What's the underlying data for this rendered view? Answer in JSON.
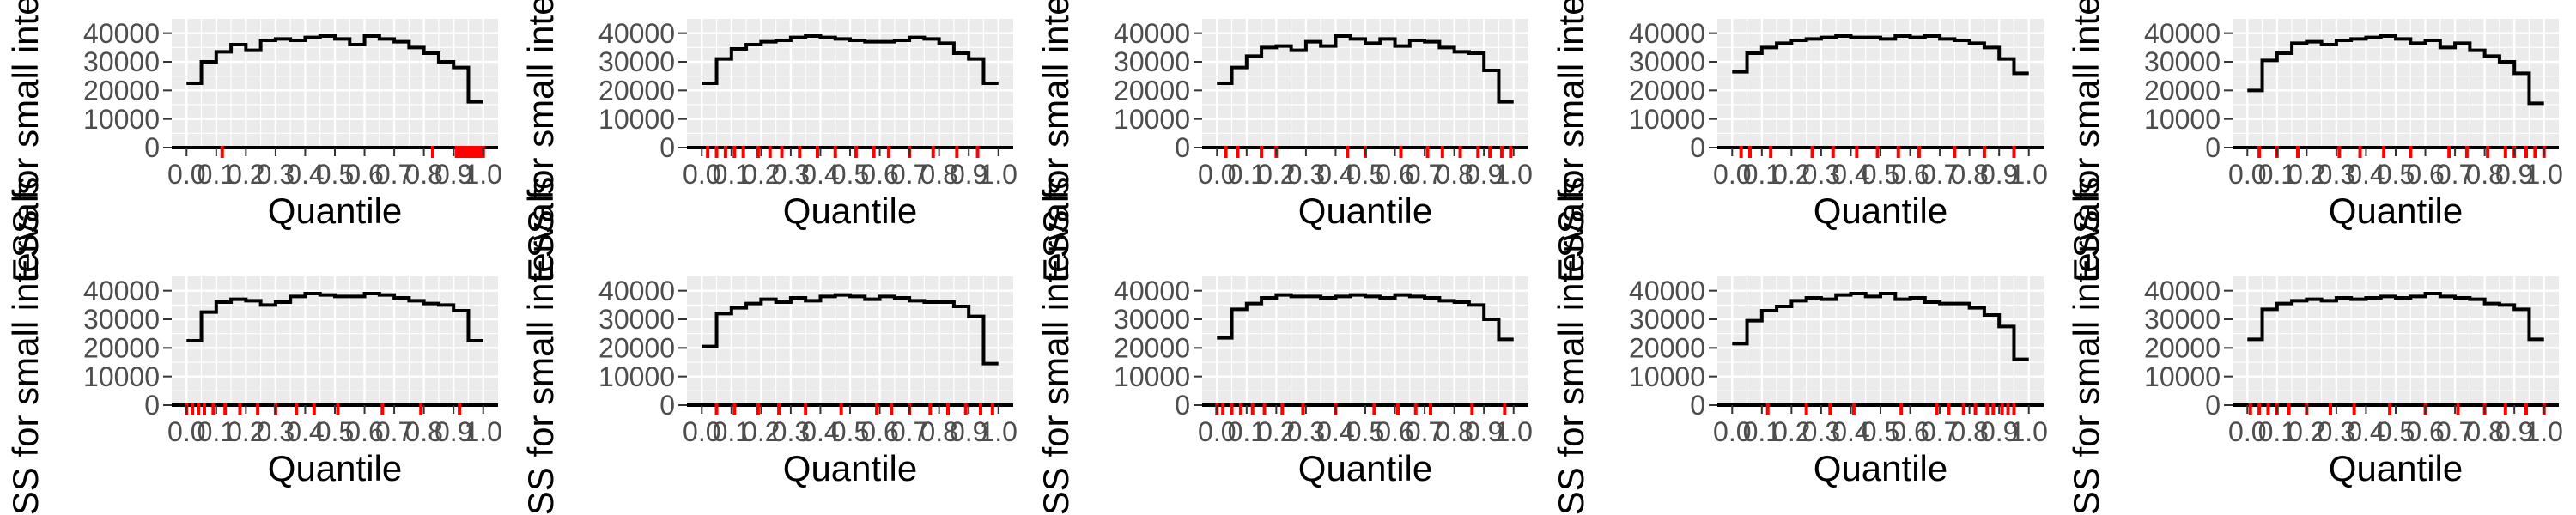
{
  "figure": {
    "background": "#ffffff",
    "panel_background": "#ebebeb",
    "grid_color": "#ffffff",
    "line_color": "#000000",
    "rug_color": "#ff0000",
    "tick_text_color": "#4d4d4d"
  },
  "chart_data": [
    {
      "type": "line",
      "step": true,
      "xlabel": "Quantile",
      "ylabel": "ESS for small intervals",
      "ylim": [
        0,
        45000
      ],
      "yticks": [
        0,
        10000,
        20000,
        30000,
        40000
      ],
      "xlim": [
        -0.05,
        1.05
      ],
      "xticks": [
        "0.0",
        "0.1",
        "0.2",
        "0.3",
        "0.4",
        "0.5",
        "0.6",
        "0.7",
        "0.8",
        "0.9",
        "1.0"
      ],
      "grid": true,
      "x": [
        0.0,
        0.05,
        0.1,
        0.15,
        0.2,
        0.25,
        0.3,
        0.35,
        0.4,
        0.45,
        0.5,
        0.55,
        0.6,
        0.65,
        0.7,
        0.75,
        0.8,
        0.85,
        0.9,
        0.95
      ],
      "values": [
        22500,
        30000,
        33500,
        36000,
        34000,
        37500,
        38000,
        37500,
        38500,
        39000,
        38000,
        36000,
        39000,
        38000,
        37000,
        35000,
        33000,
        30000,
        28000,
        16000
      ],
      "rug": [
        0.91,
        0.93,
        0.95,
        0.97,
        0.99,
        1.0,
        0.94,
        0.96,
        0.92,
        0.98,
        0.12,
        0.83
      ]
    },
    {
      "type": "line",
      "step": true,
      "xlabel": "Quantile",
      "ylabel": "ESS for small intervals",
      "ylim": [
        0,
        45000
      ],
      "yticks": [
        0,
        10000,
        20000,
        30000,
        40000
      ],
      "xlim": [
        -0.05,
        1.05
      ],
      "xticks": [
        "0.0",
        "0.1",
        "0.2",
        "0.3",
        "0.4",
        "0.5",
        "0.6",
        "0.7",
        "0.8",
        "0.9",
        "1.0"
      ],
      "grid": true,
      "x": [
        0.0,
        0.05,
        0.1,
        0.15,
        0.2,
        0.25,
        0.3,
        0.35,
        0.4,
        0.45,
        0.5,
        0.55,
        0.6,
        0.65,
        0.7,
        0.75,
        0.8,
        0.85,
        0.9,
        0.95
      ],
      "values": [
        22500,
        31000,
        34500,
        36000,
        37000,
        37500,
        38500,
        39000,
        38500,
        38000,
        37500,
        37000,
        37000,
        37500,
        38500,
        38000,
        36500,
        33000,
        31000,
        22500
      ],
      "rug": [
        0.02,
        0.05,
        0.08,
        0.11,
        0.14,
        0.19,
        0.23,
        0.27,
        0.33,
        0.39,
        0.45,
        0.52,
        0.58,
        0.63,
        0.7,
        0.78,
        0.86,
        0.93
      ]
    },
    {
      "type": "line",
      "step": true,
      "xlabel": "Quantile",
      "ylabel": "ESS for small intervals",
      "ylim": [
        0,
        45000
      ],
      "yticks": [
        0,
        10000,
        20000,
        30000,
        40000
      ],
      "xlim": [
        -0.05,
        1.05
      ],
      "xticks": [
        "0.0",
        "0.1",
        "0.2",
        "0.3",
        "0.4",
        "0.5",
        "0.6",
        "0.7",
        "0.8",
        "0.9",
        "1.0"
      ],
      "grid": true,
      "x": [
        0.0,
        0.05,
        0.1,
        0.15,
        0.2,
        0.25,
        0.3,
        0.35,
        0.4,
        0.45,
        0.5,
        0.55,
        0.6,
        0.65,
        0.7,
        0.75,
        0.8,
        0.85,
        0.9,
        0.95
      ],
      "values": [
        22500,
        28000,
        32000,
        35000,
        35500,
        34000,
        37000,
        35500,
        39000,
        38000,
        36500,
        38000,
        35500,
        37500,
        37000,
        35000,
        33500,
        33000,
        27000,
        16000
      ],
      "rug": [
        0.03,
        0.07,
        0.15,
        0.2,
        0.44,
        0.5,
        0.62,
        0.71,
        0.76,
        0.82,
        0.88,
        0.92,
        0.96,
        0.99
      ]
    },
    {
      "type": "line",
      "step": true,
      "xlabel": "Quantile",
      "ylabel": "ESS for small intervals",
      "ylim": [
        0,
        45000
      ],
      "yticks": [
        0,
        10000,
        20000,
        30000,
        40000
      ],
      "xlim": [
        -0.05,
        1.05
      ],
      "xticks": [
        "0.0",
        "0.1",
        "0.2",
        "0.3",
        "0.4",
        "0.5",
        "0.6",
        "0.7",
        "0.8",
        "0.9",
        "1.0"
      ],
      "grid": true,
      "x": [
        0.0,
        0.05,
        0.1,
        0.15,
        0.2,
        0.25,
        0.3,
        0.35,
        0.4,
        0.45,
        0.5,
        0.55,
        0.6,
        0.65,
        0.7,
        0.75,
        0.8,
        0.85,
        0.9,
        0.95
      ],
      "values": [
        26500,
        33000,
        35000,
        36500,
        37500,
        38000,
        38500,
        39000,
        38500,
        38500,
        38000,
        39000,
        38500,
        39000,
        38000,
        37500,
        36500,
        35000,
        31000,
        26000
      ],
      "rug": [
        0.03,
        0.06,
        0.13,
        0.27,
        0.34,
        0.42,
        0.49,
        0.56,
        0.63,
        0.75,
        0.85,
        0.95
      ]
    },
    {
      "type": "line",
      "step": true,
      "xlabel": "Quantile",
      "ylabel": "ESS for small intervals",
      "ylim": [
        0,
        45000
      ],
      "yticks": [
        0,
        10000,
        20000,
        30000,
        40000
      ],
      "xlim": [
        -0.05,
        1.05
      ],
      "xticks": [
        "0.0",
        "0.1",
        "0.2",
        "0.3",
        "0.4",
        "0.5",
        "0.6",
        "0.7",
        "0.8",
        "0.9",
        "1.0"
      ],
      "grid": true,
      "x": [
        0.0,
        0.05,
        0.1,
        0.15,
        0.2,
        0.25,
        0.3,
        0.35,
        0.4,
        0.45,
        0.5,
        0.55,
        0.6,
        0.65,
        0.7,
        0.75,
        0.8,
        0.85,
        0.9,
        0.95
      ],
      "values": [
        20000,
        30500,
        33000,
        36500,
        37000,
        36000,
        37500,
        38000,
        38500,
        39000,
        38000,
        36500,
        37500,
        35000,
        36500,
        34000,
        32000,
        30000,
        26000,
        15500
      ],
      "rug": [
        0.04,
        0.1,
        0.17,
        0.31,
        0.38,
        0.46,
        0.55,
        0.68,
        0.74,
        0.81,
        0.87,
        0.9,
        0.94,
        0.97,
        1.0
      ]
    },
    {
      "type": "line",
      "step": true,
      "xlabel": "Quantile",
      "ylabel": "ESS for small intervals",
      "ylim": [
        0,
        45000
      ],
      "yticks": [
        0,
        10000,
        20000,
        30000,
        40000
      ],
      "xlim": [
        -0.05,
        1.05
      ],
      "xticks": [
        "0.0",
        "0.1",
        "0.2",
        "0.3",
        "0.4",
        "0.5",
        "0.6",
        "0.7",
        "0.8",
        "0.9",
        "1.0"
      ],
      "grid": true,
      "x": [
        0.0,
        0.05,
        0.1,
        0.15,
        0.2,
        0.25,
        0.3,
        0.35,
        0.4,
        0.45,
        0.5,
        0.55,
        0.6,
        0.65,
        0.7,
        0.75,
        0.8,
        0.85,
        0.9,
        0.95
      ],
      "values": [
        22500,
        32500,
        36000,
        37000,
        36500,
        35000,
        36000,
        38000,
        39000,
        38500,
        38000,
        38000,
        39000,
        38500,
        37500,
        36500,
        35500,
        35000,
        33000,
        22500
      ],
      "rug": [
        0.0,
        0.02,
        0.04,
        0.06,
        0.09,
        0.13,
        0.18,
        0.24,
        0.3,
        0.37,
        0.43,
        0.51,
        0.66,
        0.79,
        0.92
      ]
    },
    {
      "type": "line",
      "step": true,
      "xlabel": "Quantile",
      "ylabel": "ESS for small intervals",
      "ylim": [
        0,
        45000
      ],
      "yticks": [
        0,
        10000,
        20000,
        30000,
        40000
      ],
      "xlim": [
        -0.05,
        1.05
      ],
      "xticks": [
        "0.0",
        "0.1",
        "0.2",
        "0.3",
        "0.4",
        "0.5",
        "0.6",
        "0.7",
        "0.8",
        "0.9",
        "1.0"
      ],
      "grid": true,
      "x": [
        0.0,
        0.05,
        0.1,
        0.15,
        0.2,
        0.25,
        0.3,
        0.35,
        0.4,
        0.45,
        0.5,
        0.55,
        0.6,
        0.65,
        0.7,
        0.75,
        0.8,
        0.85,
        0.9,
        0.95
      ],
      "values": [
        20500,
        32000,
        34000,
        35500,
        37000,
        36000,
        37500,
        36500,
        38000,
        38500,
        38000,
        37000,
        38000,
        37500,
        36500,
        36000,
        36000,
        34500,
        31000,
        14500
      ],
      "rug": [
        0.05,
        0.11,
        0.19,
        0.26,
        0.35,
        0.47,
        0.59,
        0.64,
        0.7,
        0.77,
        0.83,
        0.89,
        0.94,
        0.98
      ]
    },
    {
      "type": "line",
      "step": true,
      "xlabel": "Quantile",
      "ylabel": "ESS for small intervals",
      "ylim": [
        0,
        45000
      ],
      "yticks": [
        0,
        10000,
        20000,
        30000,
        40000
      ],
      "xlim": [
        -0.05,
        1.05
      ],
      "xticks": [
        "0.0",
        "0.1",
        "0.2",
        "0.3",
        "0.4",
        "0.5",
        "0.6",
        "0.7",
        "0.8",
        "0.9",
        "1.0"
      ],
      "grid": true,
      "x": [
        0.0,
        0.05,
        0.1,
        0.15,
        0.2,
        0.25,
        0.3,
        0.35,
        0.4,
        0.45,
        0.5,
        0.55,
        0.6,
        0.65,
        0.7,
        0.75,
        0.8,
        0.85,
        0.9,
        0.95
      ],
      "values": [
        23500,
        33500,
        35500,
        37500,
        38500,
        38000,
        38000,
        37500,
        38000,
        38500,
        38000,
        37500,
        38500,
        38000,
        37500,
        36500,
        36000,
        35000,
        30000,
        23000
      ],
      "rug": [
        0.0,
        0.02,
        0.05,
        0.08,
        0.12,
        0.16,
        0.22,
        0.29,
        0.4,
        0.53,
        0.61,
        0.67,
        0.72,
        0.86,
        0.97
      ]
    },
    {
      "type": "line",
      "step": true,
      "xlabel": "Quantile",
      "ylabel": "ESS for small intervals",
      "ylim": [
        0,
        45000
      ],
      "yticks": [
        0,
        10000,
        20000,
        30000,
        40000
      ],
      "xlim": [
        -0.05,
        1.05
      ],
      "xticks": [
        "0.0",
        "0.1",
        "0.2",
        "0.3",
        "0.4",
        "0.5",
        "0.6",
        "0.7",
        "0.8",
        "0.9",
        "1.0"
      ],
      "grid": true,
      "x": [
        0.0,
        0.05,
        0.1,
        0.15,
        0.2,
        0.25,
        0.3,
        0.35,
        0.4,
        0.45,
        0.5,
        0.55,
        0.6,
        0.65,
        0.7,
        0.75,
        0.8,
        0.85,
        0.9,
        0.95
      ],
      "values": [
        21500,
        29500,
        33000,
        34500,
        36500,
        37500,
        37000,
        38500,
        39000,
        38000,
        39000,
        37000,
        37500,
        36000,
        35500,
        35500,
        34000,
        31500,
        27500,
        16000
      ],
      "rug": [
        0.12,
        0.25,
        0.33,
        0.41,
        0.57,
        0.69,
        0.73,
        0.78,
        0.82,
        0.86,
        0.88,
        0.91,
        0.93,
        0.95
      ]
    },
    {
      "type": "line",
      "step": true,
      "xlabel": "Quantile",
      "ylabel": "ESS for small intervals",
      "ylim": [
        0,
        45000
      ],
      "yticks": [
        0,
        10000,
        20000,
        30000,
        40000
      ],
      "xlim": [
        -0.05,
        1.05
      ],
      "xticks": [
        "0.0",
        "0.1",
        "0.2",
        "0.3",
        "0.4",
        "0.5",
        "0.6",
        "0.7",
        "0.8",
        "0.9",
        "1.0"
      ],
      "grid": true,
      "x": [
        0.0,
        0.05,
        0.1,
        0.15,
        0.2,
        0.25,
        0.3,
        0.35,
        0.4,
        0.45,
        0.5,
        0.55,
        0.6,
        0.65,
        0.7,
        0.75,
        0.8,
        0.85,
        0.9,
        0.95
      ],
      "values": [
        23000,
        33500,
        35500,
        36500,
        37000,
        36500,
        37500,
        37000,
        37500,
        38000,
        37500,
        38000,
        39000,
        38000,
        37500,
        37000,
        35500,
        35000,
        33500,
        23000
      ],
      "rug": [
        0.01,
        0.04,
        0.07,
        0.1,
        0.14,
        0.2,
        0.28,
        0.36,
        0.48,
        0.6,
        0.71,
        0.8,
        0.87,
        0.94,
        1.0
      ]
    }
  ]
}
